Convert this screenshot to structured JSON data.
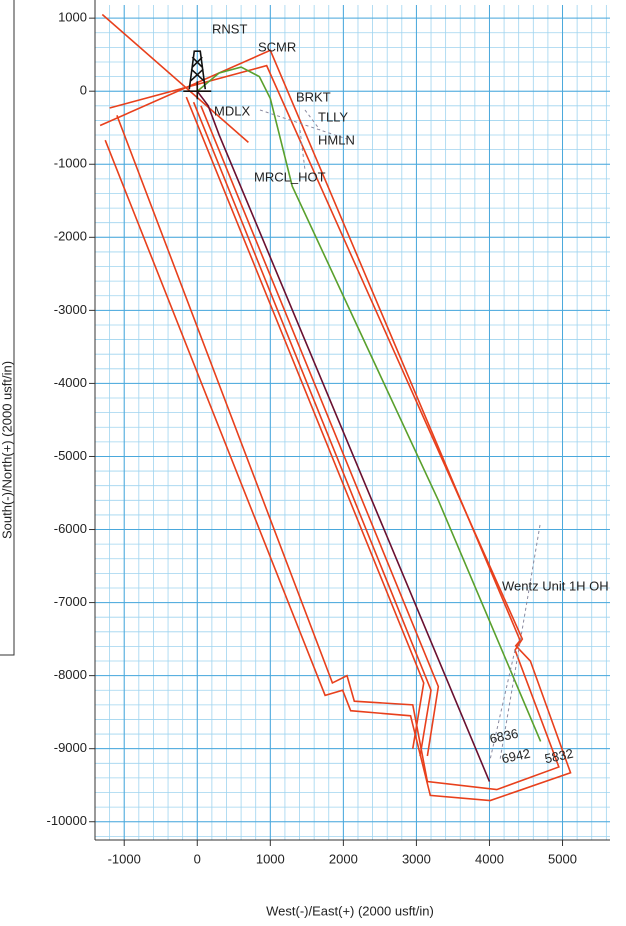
{
  "chart_data": {
    "type": "line",
    "x_label": "West(-)/East(+) (2000 usft/in)",
    "y_label": "South(-)/North(+) (2000 usft/in)",
    "xlim": [
      -1400,
      5650
    ],
    "ylim": [
      -10250,
      1180
    ],
    "xticks": [
      -1000,
      0,
      1000,
      2000,
      3000,
      4000,
      5000
    ],
    "yticks": [
      1000,
      0,
      -1000,
      -2000,
      -3000,
      -4000,
      -5000,
      -6000,
      -7000,
      -8000,
      -9000,
      -10000
    ],
    "grid": true,
    "series": [
      {
        "color": "#e8401c",
        "x": [
          -1260,
          1750,
          1990,
          2100,
          2920,
          3190,
          4010,
          5110,
          4560,
          4360,
          4420,
          1000,
          -1330
        ],
        "values": [
          -670,
          -8270,
          -8200,
          -8480,
          -8550,
          -9640,
          -9710,
          -9330,
          -7800,
          -7590,
          -7520,
          560,
          -470
        ]
      },
      {
        "color": "#e8401c",
        "x": [
          -1100,
          1850,
          2050,
          2150,
          2950,
          3150,
          4100,
          4950,
          4350,
          4450,
          950,
          -1200
        ],
        "values": [
          -330,
          -8100,
          -8000,
          -8350,
          -8400,
          -9450,
          -9560,
          -9250,
          -7650,
          -7500,
          350,
          -230
        ]
      },
      {
        "color": "#e8401c",
        "x": [
          -1300,
          700
        ],
        "values": [
          1050,
          -700
        ]
      },
      {
        "color": "#e8401c",
        "x": [
          -150,
          3100,
          2950
        ],
        "values": [
          -80,
          -8100,
          -9000
        ]
      },
      {
        "color": "#e8401c",
        "x": [
          -50,
          3200,
          3050
        ],
        "values": [
          -150,
          -8200,
          -9100
        ]
      },
      {
        "color": "#e8401c",
        "x": [
          50,
          3300,
          3150
        ],
        "values": [
          -200,
          -8150,
          -9100
        ]
      },
      {
        "color": "#6a1030",
        "x": [
          0,
          150,
          300,
          4000
        ],
        "values": [
          0,
          -200,
          -600,
          -9450
        ]
      },
      {
        "color": "#5aa02c",
        "x": [
          0,
          300,
          600,
          850,
          1000,
          1300,
          3300,
          4700
        ],
        "values": [
          0,
          250,
          330,
          200,
          -100,
          -1300,
          -5600,
          -8900
        ]
      }
    ],
    "annotations": [
      {
        "text": "RNST",
        "color": "#222"
      },
      {
        "text": "SCMR",
        "color": "#222"
      },
      {
        "text": "BRKT",
        "color": "#222"
      },
      {
        "text": "TLLY",
        "color": "#222"
      },
      {
        "text": "HMLN",
        "color": "#222"
      },
      {
        "text": "MDLX",
        "color": "#222"
      },
      {
        "text": "MRCL_HOT",
        "color": "#222"
      },
      {
        "text": "Wentz Unit 1H OH",
        "color": "#7a1f2a"
      },
      {
        "text": "6836",
        "color": "#6a1030"
      },
      {
        "text": "6942",
        "color": "#2a5bd0"
      },
      {
        "text": "5832",
        "color": "#b0b020"
      }
    ]
  }
}
